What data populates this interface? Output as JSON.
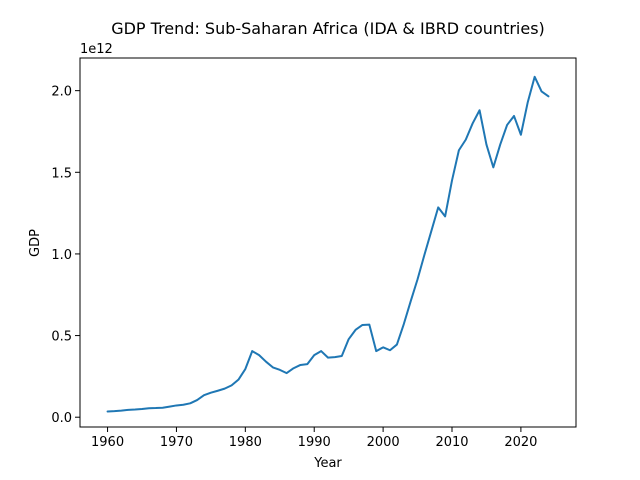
{
  "chart_data": {
    "type": "line",
    "title": "GDP Trend: Sub-Saharan Africa (IDA & IBRD countries)",
    "xlabel": "Year",
    "ylabel": "GDP",
    "y_offset_text": "1e12",
    "xlim": [
      1956,
      2028
    ],
    "ylim": [
      -0.06,
      2.2
    ],
    "x_ticks": [
      1960,
      1970,
      1980,
      1990,
      2000,
      2010,
      2020
    ],
    "x_tick_labels": [
      "1960",
      "1970",
      "1980",
      "1990",
      "2000",
      "2010",
      "2020"
    ],
    "y_ticks": [
      0.0,
      0.5,
      1.0,
      1.5,
      2.0
    ],
    "y_tick_labels": [
      "0.0",
      "0.5",
      "1.0",
      "1.5",
      "2.0"
    ],
    "grid": false,
    "line_color": "#1f77b4",
    "series": [
      {
        "x": [
          1960,
          1961,
          1962,
          1963,
          1964,
          1965,
          1966,
          1967,
          1968,
          1969,
          1970,
          1971,
          1972,
          1973,
          1974,
          1975,
          1976,
          1977,
          1978,
          1979,
          1980,
          1981,
          1982,
          1983,
          1984,
          1985,
          1986,
          1987,
          1988,
          1989,
          1990,
          1991,
          1992,
          1993,
          1994,
          1995,
          1996,
          1997,
          1998,
          1999,
          2000,
          2001,
          2002,
          2003,
          2004,
          2005,
          2006,
          2007,
          2008,
          2009,
          2010,
          2011,
          2012,
          2013,
          2014,
          2015,
          2016,
          2017,
          2018,
          2019,
          2020,
          2021,
          2022,
          2023,
          2024
        ],
        "values": [
          0.035,
          0.037,
          0.04,
          0.045,
          0.047,
          0.05,
          0.055,
          0.056,
          0.058,
          0.065,
          0.072,
          0.076,
          0.085,
          0.105,
          0.135,
          0.15,
          0.162,
          0.175,
          0.195,
          0.23,
          0.295,
          0.405,
          0.38,
          0.34,
          0.305,
          0.29,
          0.27,
          0.3,
          0.32,
          0.325,
          0.38,
          0.405,
          0.365,
          0.368,
          0.375,
          0.478,
          0.535,
          0.565,
          0.567,
          0.405,
          0.428,
          0.41,
          0.445,
          0.57,
          0.71,
          0.845,
          0.995,
          1.14,
          1.285,
          1.23,
          1.45,
          1.635,
          1.7,
          1.8,
          1.88,
          1.67,
          1.53,
          1.67,
          1.79,
          1.845,
          1.73,
          1.93,
          2.085,
          1.995,
          1.965
        ]
      }
    ]
  }
}
